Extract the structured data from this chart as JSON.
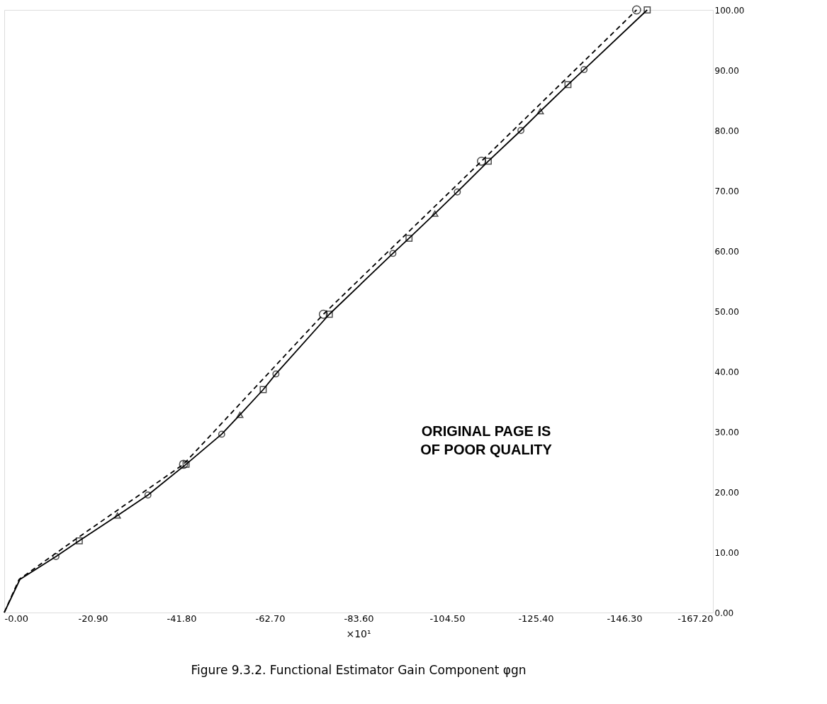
{
  "chart_data": {
    "type": "line",
    "title": "Figure 9.3.2.  Functional Estimator Gain Component φgn",
    "xlabel": "×10¹",
    "xlim": [
      0,
      -167.2
    ],
    "xticks": [
      {
        "value": 0,
        "label": "-0.00"
      },
      {
        "value": -20.9,
        "label": "-20.90"
      },
      {
        "value": -41.8,
        "label": "-41.80"
      },
      {
        "value": -62.7,
        "label": "-62.70"
      },
      {
        "value": -83.6,
        "label": "-83.60"
      },
      {
        "value": -104.5,
        "label": "-104.50"
      },
      {
        "value": -125.4,
        "label": "-125.40"
      },
      {
        "value": -146.3,
        "label": "-146.30"
      },
      {
        "value": -167.2,
        "label": "-167.20"
      }
    ],
    "ylim": [
      0,
      100
    ],
    "yticks": [
      {
        "value": 0,
        "label": "0.00"
      },
      {
        "value": 10,
        "label": "10.00"
      },
      {
        "value": 20,
        "label": "20.00"
      },
      {
        "value": 30,
        "label": "30.00"
      },
      {
        "value": 40,
        "label": "40.00"
      },
      {
        "value": 50,
        "label": "50.00"
      },
      {
        "value": 60,
        "label": "60.00"
      },
      {
        "value": 70,
        "label": "70.00"
      },
      {
        "value": 80,
        "label": "80.00"
      },
      {
        "value": 90,
        "label": "90.00"
      },
      {
        "value": 100,
        "label": "100.00"
      }
    ],
    "grid": false,
    "series": [
      {
        "line_style": "solid",
        "marker": "none",
        "color": "#000000",
        "x": [
          0,
          -3.7,
          -12.2,
          -17.7,
          -26.7,
          -33.9,
          -42.9,
          -51.3,
          -55.6,
          -61.1,
          -64.1,
          -76.7,
          -91.7,
          -95.5,
          -101.6,
          -106.9,
          -114.2,
          -121.9,
          -126.5,
          -133.0,
          -136.8,
          -151.7
        ],
        "values": [
          0,
          5.5,
          9.3,
          11.9,
          16.1,
          19.5,
          24.6,
          29.6,
          32.8,
          37.0,
          39.6,
          49.5,
          59.6,
          62.1,
          66.2,
          69.8,
          74.9,
          80.0,
          83.2,
          87.6,
          90.1,
          100
        ]
      },
      {
        "line_style": "dashed",
        "marker": "none",
        "color": "#000000",
        "x": [
          0,
          -3.5,
          -16.5,
          -42.3,
          -75.3,
          -112.6,
          -149.2
        ],
        "values": [
          0,
          5.5,
          12.0,
          24.6,
          49.5,
          74.9,
          100
        ]
      },
      {
        "type": "scatter",
        "marker": "circle",
        "color": "#000000",
        "x": [
          -12.2,
          -33.9,
          -51.3,
          -64.1,
          -91.7,
          -106.9,
          -121.9,
          -136.8
        ],
        "values": [
          9.3,
          19.5,
          29.6,
          39.6,
          59.6,
          69.8,
          80.0,
          90.1
        ]
      },
      {
        "type": "scatter",
        "marker": "square",
        "color": "#000000",
        "x": [
          -17.7,
          -42.9,
          -61.1,
          -76.7,
          -95.5,
          -114.2,
          -133.0,
          -151.7
        ],
        "values": [
          11.9,
          24.6,
          37.0,
          49.5,
          62.1,
          74.9,
          87.6,
          100
        ]
      },
      {
        "type": "scatter",
        "marker": "triangle",
        "color": "#000000",
        "x": [
          -26.7,
          -55.6,
          -101.6,
          -126.5
        ],
        "values": [
          16.1,
          32.8,
          66.2,
          83.2
        ]
      },
      {
        "type": "scatter",
        "marker": "circle",
        "color": "#000000",
        "x": [
          -42.3,
          -75.3,
          -112.6,
          -149.2
        ],
        "values": [
          24.6,
          49.5,
          74.9,
          100
        ]
      }
    ],
    "annotations": [
      "ORIGINAL PAGE IS",
      "OF POOR QUALITY"
    ]
  }
}
